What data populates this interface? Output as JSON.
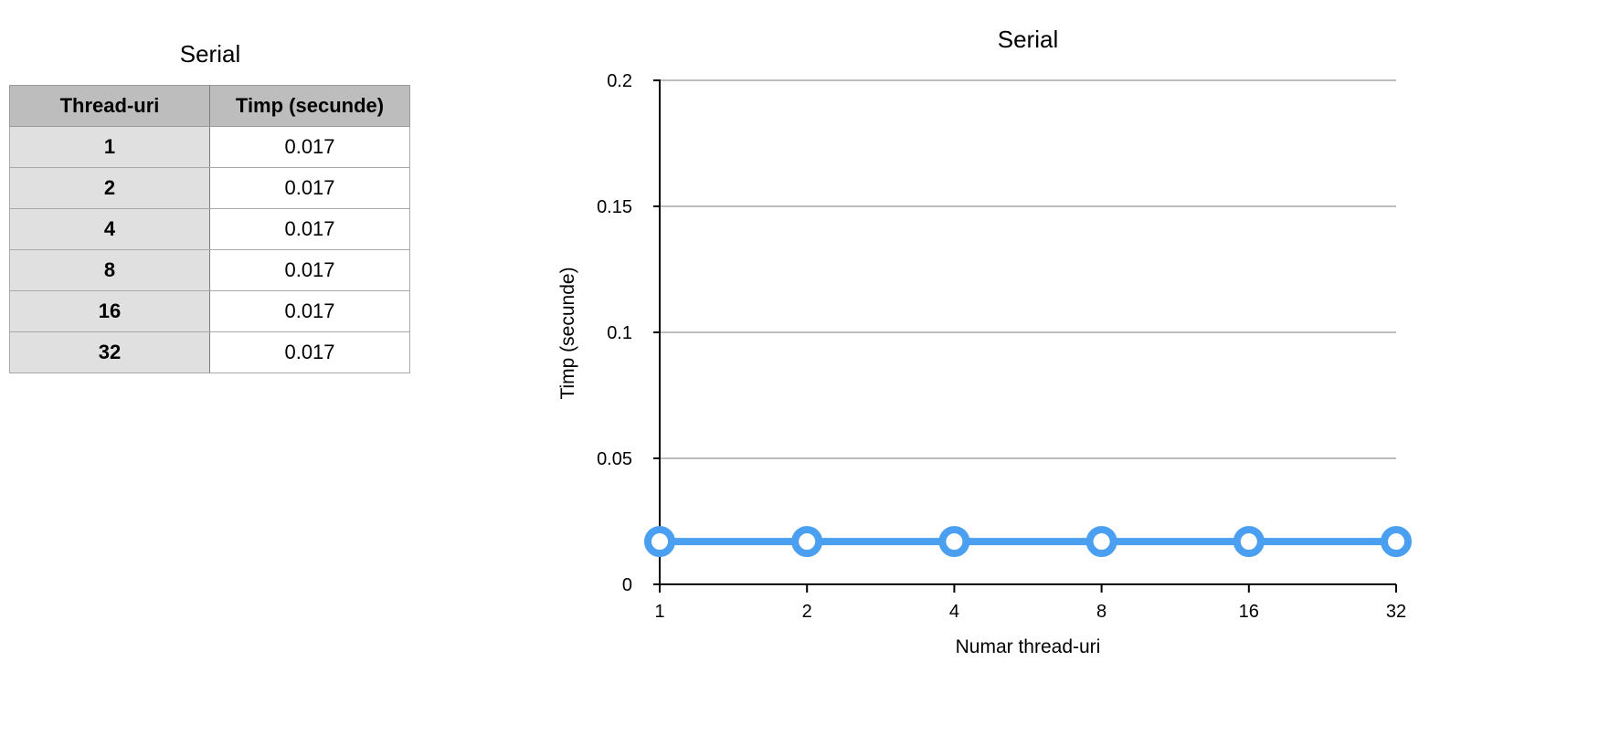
{
  "table": {
    "title": "Serial",
    "headers": [
      "Thread-uri",
      "Timp (secunde)"
    ],
    "rows": [
      [
        "1",
        "0.017"
      ],
      [
        "2",
        "0.017"
      ],
      [
        "4",
        "0.017"
      ],
      [
        "8",
        "0.017"
      ],
      [
        "16",
        "0.017"
      ],
      [
        "32",
        "0.017"
      ]
    ]
  },
  "chart_data": {
    "type": "line",
    "title": "Serial",
    "xlabel": "Numar thread-uri",
    "ylabel": "Timp (secunde)",
    "categories": [
      "1",
      "2",
      "4",
      "8",
      "16",
      "32"
    ],
    "series": [
      {
        "name": "Timp (secunde)",
        "values": [
          0.017,
          0.017,
          0.017,
          0.017,
          0.017,
          0.017
        ]
      }
    ],
    "ylim": [
      0,
      0.2
    ],
    "yticks": [
      "0",
      "0.05",
      "0.1",
      "0.15",
      "0.2"
    ],
    "grid": true,
    "line_color": "#4a9ff0"
  }
}
